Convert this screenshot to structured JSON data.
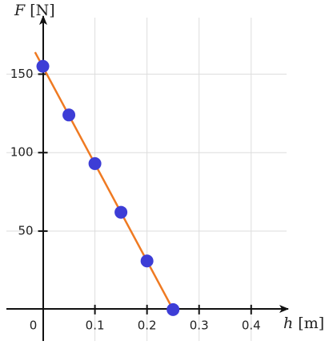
{
  "chart_data": {
    "type": "scatter",
    "y_label": {
      "symbol": "F",
      "unit": "[N]"
    },
    "x_label": {
      "symbol": "h",
      "unit": "[m]"
    },
    "xlim": [
      -0.07,
      0.468
    ],
    "ylim": [
      -20,
      186
    ],
    "xticks": [
      0,
      0.1,
      0.2,
      0.3,
      0.4
    ],
    "yticks": [
      50,
      100,
      150
    ],
    "grid": true,
    "series": [
      {
        "color": "#3d3dd6",
        "x": [
          0,
          0.05,
          0.1,
          0.15,
          0.2,
          0.25
        ],
        "values": [
          155,
          124,
          93,
          62,
          31,
          0
        ]
      }
    ],
    "fit_line": {
      "color": "#ef7a22",
      "x": [
        -0.015,
        0.25
      ],
      "values": [
        164,
        0
      ]
    }
  }
}
